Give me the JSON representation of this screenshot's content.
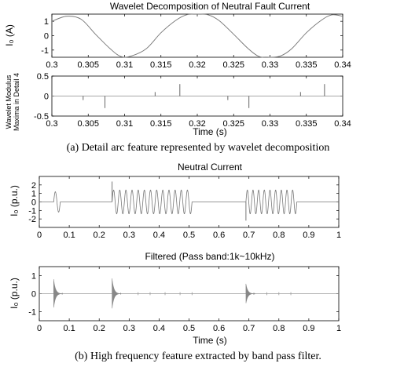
{
  "captions": {
    "a": "(a) Detail arc feature represented by wavelet decomposition",
    "b": "(b) High frequency feature extracted by band pass filter."
  },
  "chart_data": [
    {
      "type": "line",
      "title": "Wavelet Decomposition of Neutral Fault Current",
      "ylabel": "I₀ (A)",
      "xlabel": "",
      "xlim": [
        0.3,
        0.34
      ],
      "ylim": [
        -1.5,
        1.5
      ],
      "xticks": [
        "0.3",
        "0.305",
        "0.31",
        "0.315",
        "0.32",
        "0.325",
        "0.33",
        "0.335",
        "0.34"
      ],
      "yticks": [
        "1",
        "0",
        "-1"
      ],
      "series": [
        {
          "x": [
            0.3,
            0.302,
            0.304,
            0.306,
            0.308,
            0.3095,
            0.311,
            0.313,
            0.315,
            0.317,
            0.3185,
            0.32,
            0.3215,
            0.323,
            0.325,
            0.327,
            0.3285,
            0.33,
            0.3315,
            0.333,
            0.335,
            0.337,
            0.3385,
            0.34
          ],
          "values": [
            1.0,
            1.35,
            1.15,
            0.1,
            -0.9,
            -1.45,
            -1.4,
            -0.9,
            0.2,
            1.05,
            1.45,
            1.5,
            1.45,
            1.05,
            0.1,
            -0.9,
            -1.45,
            -1.5,
            -1.4,
            -0.9,
            0.2,
            1.05,
            1.45,
            1.35
          ]
        }
      ]
    },
    {
      "type": "stem",
      "title": "",
      "ylabel": "Wavelet Modulus Maxima in Detail 4",
      "ylabel_lines": [
        "Wavelet Modulus",
        "Maxima in Detail 4"
      ],
      "xlabel": "Time (s)",
      "xlim": [
        0.3,
        0.34
      ],
      "ylim": [
        -0.5,
        0.5
      ],
      "xticks": [
        "0.3",
        "0.305",
        "0.31",
        "0.315",
        "0.32",
        "0.325",
        "0.33",
        "0.335",
        "0.34"
      ],
      "yticks": [
        "0.5",
        "0",
        "-0.5"
      ],
      "series": [
        {
          "x": [
            0.3043,
            0.3073,
            0.3142,
            0.3176,
            0.3242,
            0.3271,
            0.3342,
            0.3375
          ],
          "values": [
            -0.1,
            -0.3,
            0.1,
            0.3,
            -0.1,
            -0.3,
            0.1,
            0.3
          ]
        }
      ]
    },
    {
      "type": "line",
      "title": "Neutral Current",
      "ylabel": "I₀ (p.u.)",
      "xlabel": "",
      "xlim": [
        0,
        1
      ],
      "ylim": [
        -3,
        3
      ],
      "xticks": [
        "0",
        "0.1",
        "0.2",
        "0.3",
        "0.4",
        "0.5",
        "0.6",
        "0.7",
        "0.8",
        "0.9",
        "1"
      ],
      "yticks": [
        "2",
        "1",
        "0",
        "-1",
        "-2"
      ],
      "segments": [
        {
          "start": 0.048,
          "end": 0.07,
          "amplitude": 1.2,
          "cycles": 1
        },
        {
          "start": 0.243,
          "end": 0.51,
          "amplitude": 1.4,
          "cycles": 13
        },
        {
          "start": 0.69,
          "end": 0.86,
          "amplitude": 1.4,
          "cycles": 9
        }
      ],
      "spikes": [
        {
          "x": 0.243,
          "value": 2.4
        },
        {
          "x": 0.69,
          "value": -2.2
        }
      ]
    },
    {
      "type": "line",
      "title": "Filtered (Pass band:1k~10kHz)",
      "ylabel": "I₀ (p.u.)",
      "xlabel": "Time (s)",
      "xlim": [
        0,
        1
      ],
      "ylim": [
        -1.5,
        1.5
      ],
      "xticks": [
        "0",
        "0.1",
        "0.2",
        "0.3",
        "0.4",
        "0.5",
        "0.6",
        "0.7",
        "0.8",
        "0.9",
        "1"
      ],
      "yticks": [
        "1",
        "0",
        "-1"
      ],
      "bursts": [
        {
          "x": 0.048,
          "amplitude": 0.8
        },
        {
          "x": 0.243,
          "amplitude": 0.85
        },
        {
          "x": 0.69,
          "amplitude": 0.55
        }
      ],
      "minor_bursts": [
        0.33,
        0.37,
        0.42,
        0.47,
        0.51,
        0.76,
        0.8,
        0.84
      ]
    }
  ]
}
